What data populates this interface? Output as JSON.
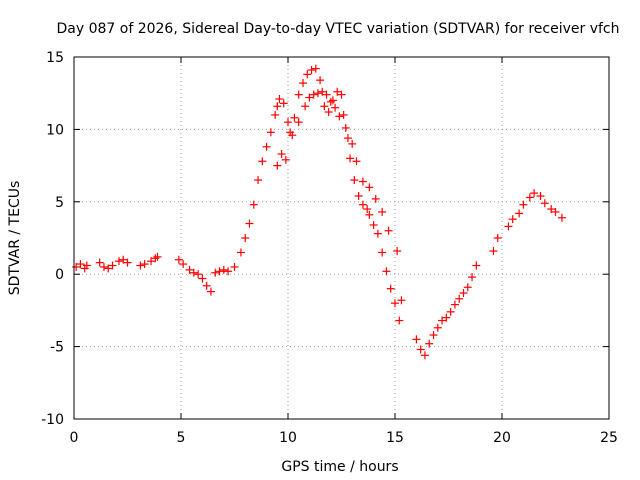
{
  "chart_data": {
    "type": "scatter",
    "title": "Day 087 of 2026, Sidereal Day-to-day VTEC variation (SDTVAR) for receiver vfch",
    "xlabel": "GPS time / hours",
    "ylabel": "SDTVAR / TECUs",
    "xlim": [
      0,
      25
    ],
    "ylim": [
      -10,
      15
    ],
    "xticks": [
      0,
      5,
      10,
      15,
      20,
      25
    ],
    "yticks": [
      -10,
      -5,
      0,
      5,
      10,
      15
    ],
    "grid": true,
    "marker": "+",
    "marker_color": "#ff0000",
    "series": [
      {
        "name": "SDTVAR",
        "x": [
          0.1,
          0.3,
          0.5,
          0.6,
          1.2,
          1.4,
          1.6,
          1.8,
          2.1,
          2.3,
          2.5,
          3.1,
          3.3,
          3.6,
          3.8,
          3.9,
          4.9,
          5.1,
          5.4,
          5.6,
          5.8,
          6.0,
          6.2,
          6.4,
          6.6,
          6.8,
          7.0,
          7.2,
          7.5,
          7.8,
          8.0,
          8.2,
          8.4,
          8.6,
          8.8,
          9.0,
          9.2,
          9.4,
          9.5,
          9.6,
          9.8,
          10.0,
          10.1,
          10.3,
          10.5,
          10.7,
          10.9,
          11.1,
          11.3,
          11.5,
          11.7,
          11.9,
          12.1,
          12.3,
          12.5,
          12.6,
          12.8,
          12.9,
          13.1,
          13.3,
          13.5,
          13.7,
          13.8,
          14.0,
          14.2,
          14.4,
          14.6,
          14.8,
          15.0,
          15.2,
          15.3,
          16.0,
          16.2,
          16.4,
          16.6,
          16.8,
          17.0,
          17.2,
          17.4,
          17.6,
          17.8,
          18.0,
          18.2,
          18.4,
          18.6,
          18.8,
          19.6,
          19.8,
          20.3,
          20.5,
          20.8,
          21.0,
          21.3,
          21.5,
          21.8,
          22.0,
          22.3,
          22.5,
          22.8,
          9.5,
          9.7,
          9.9,
          10.2,
          10.5,
          10.8,
          11.0,
          11.2,
          11.4,
          11.6,
          11.8,
          12.0,
          12.2,
          12.4,
          12.7,
          13.0,
          13.2,
          13.5,
          13.8,
          14.1,
          14.4,
          14.7,
          15.1
        ],
        "y": [
          0.5,
          0.7,
          0.4,
          0.6,
          0.8,
          0.5,
          0.4,
          0.6,
          0.9,
          1.0,
          0.8,
          0.6,
          0.7,
          0.9,
          1.1,
          1.2,
          1.0,
          0.7,
          0.3,
          0.1,
          0.0,
          -0.3,
          -0.8,
          -1.2,
          0.1,
          0.2,
          0.3,
          0.2,
          0.5,
          1.5,
          2.5,
          3.5,
          4.8,
          6.5,
          7.8,
          8.8,
          9.8,
          11.0,
          11.6,
          12.1,
          11.8,
          10.5,
          9.8,
          10.8,
          12.4,
          13.2,
          13.8,
          14.1,
          14.2,
          13.4,
          11.6,
          11.2,
          12.0,
          12.6,
          12.4,
          11.0,
          9.4,
          8.0,
          6.5,
          5.4,
          4.8,
          4.5,
          4.1,
          3.4,
          2.8,
          1.5,
          0.2,
          -1.0,
          -2.0,
          -3.2,
          -1.8,
          -4.5,
          -5.2,
          -5.6,
          -4.8,
          -4.2,
          -3.7,
          -3.2,
          -3.0,
          -2.6,
          -2.1,
          -1.7,
          -1.3,
          -0.9,
          -0.2,
          0.6,
          1.6,
          2.5,
          3.3,
          3.8,
          4.2,
          4.8,
          5.3,
          5.6,
          5.4,
          4.9,
          4.5,
          4.3,
          3.9,
          7.5,
          8.3,
          7.9,
          9.6,
          10.5,
          11.6,
          12.2,
          12.4,
          12.5,
          12.6,
          12.4,
          11.9,
          11.5,
          10.9,
          10.1,
          9.0,
          7.8,
          6.4,
          6.0,
          5.2,
          4.3,
          3.0,
          1.6
        ]
      }
    ]
  }
}
